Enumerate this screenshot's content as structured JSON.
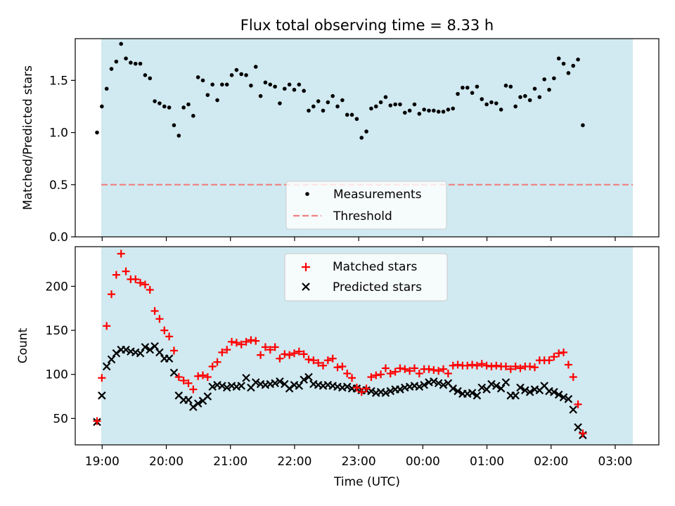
{
  "title": "Flux total observing time = 8.33 h",
  "colors": {
    "background_band": "#d1e9f0",
    "threshold": "#f08080",
    "matched": "#ff0000",
    "predicted": "#000000",
    "measurements": "#000000"
  },
  "chart_data": [
    {
      "type": "scatter",
      "ylabel": "Matched/Predicted stars",
      "ylim": [
        0,
        1.9
      ],
      "yticks": [
        0.0,
        0.5,
        1.0,
        1.5
      ],
      "ytick_labels": [
        "0.0",
        "0.5",
        "1.0",
        "1.5"
      ],
      "legend_position": "bottom-center",
      "series": [
        {
          "name": "Measurements",
          "marker": "dot",
          "x_start": 18.92,
          "x_step": 0.075,
          "values": [
            1.0,
            1.25,
            1.42,
            1.61,
            1.68,
            1.85,
            1.71,
            1.67,
            1.66,
            1.66,
            1.55,
            1.52,
            1.3,
            1.28,
            1.25,
            1.24,
            1.07,
            0.97,
            1.24,
            1.27,
            1.16,
            1.53,
            1.5,
            1.36,
            1.46,
            1.31,
            1.46,
            1.46,
            1.55,
            1.6,
            1.56,
            1.55,
            1.45,
            1.63,
            1.35,
            1.48,
            1.46,
            1.44,
            1.28,
            1.42,
            1.46,
            1.41,
            1.46,
            1.4,
            1.21,
            1.25,
            1.3,
            1.21,
            1.29,
            1.35,
            1.25,
            1.31,
            1.17,
            1.17,
            1.13,
            0.95,
            1.01,
            1.23,
            1.25,
            1.29,
            1.34,
            1.26,
            1.27,
            1.27,
            1.19,
            1.21,
            1.27,
            1.18,
            1.22,
            1.21,
            1.21,
            1.2,
            1.2,
            1.22,
            1.23,
            1.37,
            1.43,
            1.43,
            1.38,
            1.44,
            1.32,
            1.27,
            1.29,
            1.28,
            1.22,
            1.45,
            1.44,
            1.25,
            1.34,
            1.35,
            1.31,
            1.42,
            1.34,
            1.51,
            1.41,
            1.52,
            1.71,
            1.66,
            1.57,
            1.64,
            1.7,
            1.07
          ]
        },
        {
          "name": "Threshold",
          "style": "dashed-line",
          "values": [
            0.5
          ]
        }
      ]
    },
    {
      "type": "scatter",
      "xlabel": "Time (UTC)",
      "ylabel": "Count",
      "ylim": [
        20,
        245
      ],
      "yticks": [
        50,
        100,
        150,
        200
      ],
      "ytick_labels": [
        "50",
        "100",
        "150",
        "200"
      ],
      "xticks": [
        19,
        20,
        21,
        22,
        23,
        24,
        25,
        26,
        27
      ],
      "xtick_labels": [
        "19:00",
        "20:00",
        "21:00",
        "22:00",
        "23:00",
        "00:00",
        "01:00",
        "02:00",
        "03:00"
      ],
      "xlim": [
        18.58,
        27.68
      ],
      "band_x": [
        18.92,
        27.27
      ],
      "legend_position": "top-center",
      "series": [
        {
          "name": "Matched stars",
          "marker": "plus",
          "x_start": 18.92,
          "x_step": 0.075,
          "values": [
            47,
            96,
            155,
            191,
            213,
            237,
            217,
            208,
            208,
            204,
            202,
            196,
            172,
            163,
            150,
            143,
            127,
            97,
            93,
            90,
            83,
            98,
            99,
            97,
            109,
            114,
            125,
            128,
            137,
            136,
            134,
            137,
            139,
            138,
            122,
            131,
            128,
            131,
            118,
            123,
            122,
            124,
            126,
            123,
            117,
            116,
            113,
            110,
            116,
            118,
            108,
            109,
            101,
            96,
            85,
            80,
            84,
            97,
            99,
            100,
            107,
            101,
            103,
            107,
            106,
            104,
            107,
            101,
            106,
            106,
            105,
            104,
            106,
            101,
            110,
            111,
            110,
            110,
            111,
            110,
            112,
            110,
            109,
            110,
            109,
            109,
            106,
            109,
            107,
            109,
            109,
            108,
            116,
            116,
            116,
            120,
            124,
            125,
            111,
            97,
            66,
            33
          ]
        },
        {
          "name": "Predicted stars",
          "marker": "x",
          "x_start": 18.92,
          "x_step": 0.075,
          "values": [
            46,
            76,
            109,
            117,
            124,
            128,
            128,
            126,
            125,
            124,
            131,
            128,
            132,
            125,
            118,
            118,
            102,
            76,
            71,
            71,
            63,
            67,
            70,
            75,
            86,
            88,
            87,
            85,
            87,
            86,
            87,
            96,
            85,
            91,
            89,
            88,
            89,
            90,
            92,
            89,
            84,
            88,
            87,
            94,
            97,
            89,
            88,
            87,
            88,
            87,
            86,
            85,
            86,
            84,
            84,
            82,
            82,
            81,
            79,
            80,
            79,
            81,
            83,
            83,
            85,
            86,
            87,
            86,
            88,
            91,
            92,
            90,
            88,
            90,
            84,
            81,
            78,
            78,
            79,
            76,
            85,
            83,
            89,
            87,
            84,
            91,
            76,
            76,
            85,
            82,
            80,
            83,
            82,
            87,
            81,
            80,
            77,
            74,
            72,
            60,
            40,
            31
          ]
        }
      ]
    }
  ]
}
